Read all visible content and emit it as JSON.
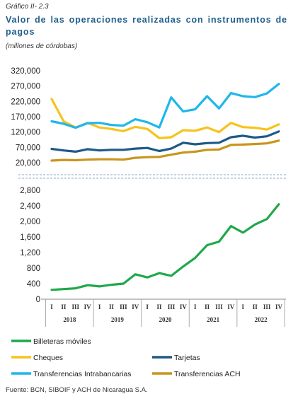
{
  "header": {
    "label": "Gráfico II- 2.3",
    "title": "Valor de las operaciones realizadas con instrumentos de pagos",
    "unit": "(millones de córdobas)"
  },
  "source": "Fuente: BCN, SIBOIF y ACH de Nicaragua S.A.",
  "chart_data": [
    {
      "type": "line",
      "panel": "top",
      "y_ticks": [
        "320,000",
        "270,000",
        "220,000",
        "170,000",
        "120,000",
        "70,000",
        "20,000"
      ],
      "ylim": [
        20000,
        320000
      ],
      "grid": false,
      "x": [
        "2018-I",
        "2018-II",
        "2018-III",
        "2018-IV",
        "2019-I",
        "2019-II",
        "2019-III",
        "2019-IV",
        "2020-I",
        "2020-II",
        "2020-III",
        "2020-IV",
        "2021-I",
        "2021-II",
        "2021-III",
        "2021-IV",
        "2022-I",
        "2022-II",
        "2022-III",
        "2022-IV"
      ],
      "series": [
        {
          "name": "Cheques",
          "color": "#f7c31c",
          "values": [
            228000,
            155000,
            135000,
            150000,
            135000,
            130000,
            123000,
            137000,
            130000,
            100000,
            103000,
            126000,
            124000,
            135000,
            120000,
            150000,
            136000,
            134000,
            128000,
            145000
          ]
        },
        {
          "name": "Tarjetas",
          "color": "#1e5a86",
          "values": [
            65000,
            60000,
            56000,
            64000,
            60000,
            62000,
            62000,
            66000,
            68000,
            58000,
            66000,
            85000,
            80000,
            84000,
            85000,
            103000,
            108000,
            102000,
            106000,
            122000
          ]
        },
        {
          "name": "Transferencias Intrabancarias",
          "color": "#1fb6ec",
          "values": [
            155000,
            147000,
            134000,
            149000,
            150000,
            143000,
            141000,
            162000,
            152000,
            135000,
            233000,
            187000,
            194000,
            237000,
            197000,
            247000,
            237000,
            234000,
            246000,
            277000
          ]
        },
        {
          "name": "Transferencias ACH",
          "color": "#c9951c",
          "values": [
            27000,
            29000,
            28000,
            30000,
            31000,
            31000,
            30000,
            36000,
            38000,
            39000,
            46000,
            53000,
            56000,
            62000,
            63000,
            78000,
            79000,
            81000,
            83000,
            92000
          ]
        }
      ]
    },
    {
      "type": "line",
      "panel": "bottom",
      "y_ticks": [
        "2,800",
        "2,400",
        "2,000",
        "1,600",
        "1,200",
        "800",
        "400",
        "0"
      ],
      "ylim": [
        0,
        2800
      ],
      "grid": false,
      "x": [
        "2018-I",
        "2018-II",
        "2018-III",
        "2018-IV",
        "2019-I",
        "2019-II",
        "2019-III",
        "2019-IV",
        "2020-I",
        "2020-II",
        "2020-III",
        "2020-IV",
        "2021-I",
        "2021-II",
        "2021-III",
        "2021-IV",
        "2022-I",
        "2022-II",
        "2022-III",
        "2022-IV"
      ],
      "quarter_labels": [
        "I",
        "II",
        "III",
        "IV"
      ],
      "year_labels": [
        "2018",
        "2019",
        "2020",
        "2021",
        "2022"
      ],
      "series": [
        {
          "name": "Billeteras móviles",
          "color": "#1fa84b",
          "values": [
            240,
            260,
            280,
            360,
            330,
            370,
            400,
            640,
            560,
            670,
            600,
            840,
            1060,
            1390,
            1480,
            1880,
            1710,
            1920,
            2060,
            2440
          ]
        }
      ]
    }
  ],
  "legend": {
    "placement": "bottom",
    "items": [
      {
        "name": "Billeteras móviles",
        "color": "#1fa84b"
      },
      {
        "name": "Cheques",
        "color": "#f7c31c"
      },
      {
        "name": "Tarjetas",
        "color": "#1e5a86"
      },
      {
        "name": "Transferencias Intrabancarias",
        "color": "#1fb6ec"
      },
      {
        "name": "Transferencias ACH",
        "color": "#c9951c"
      }
    ]
  }
}
